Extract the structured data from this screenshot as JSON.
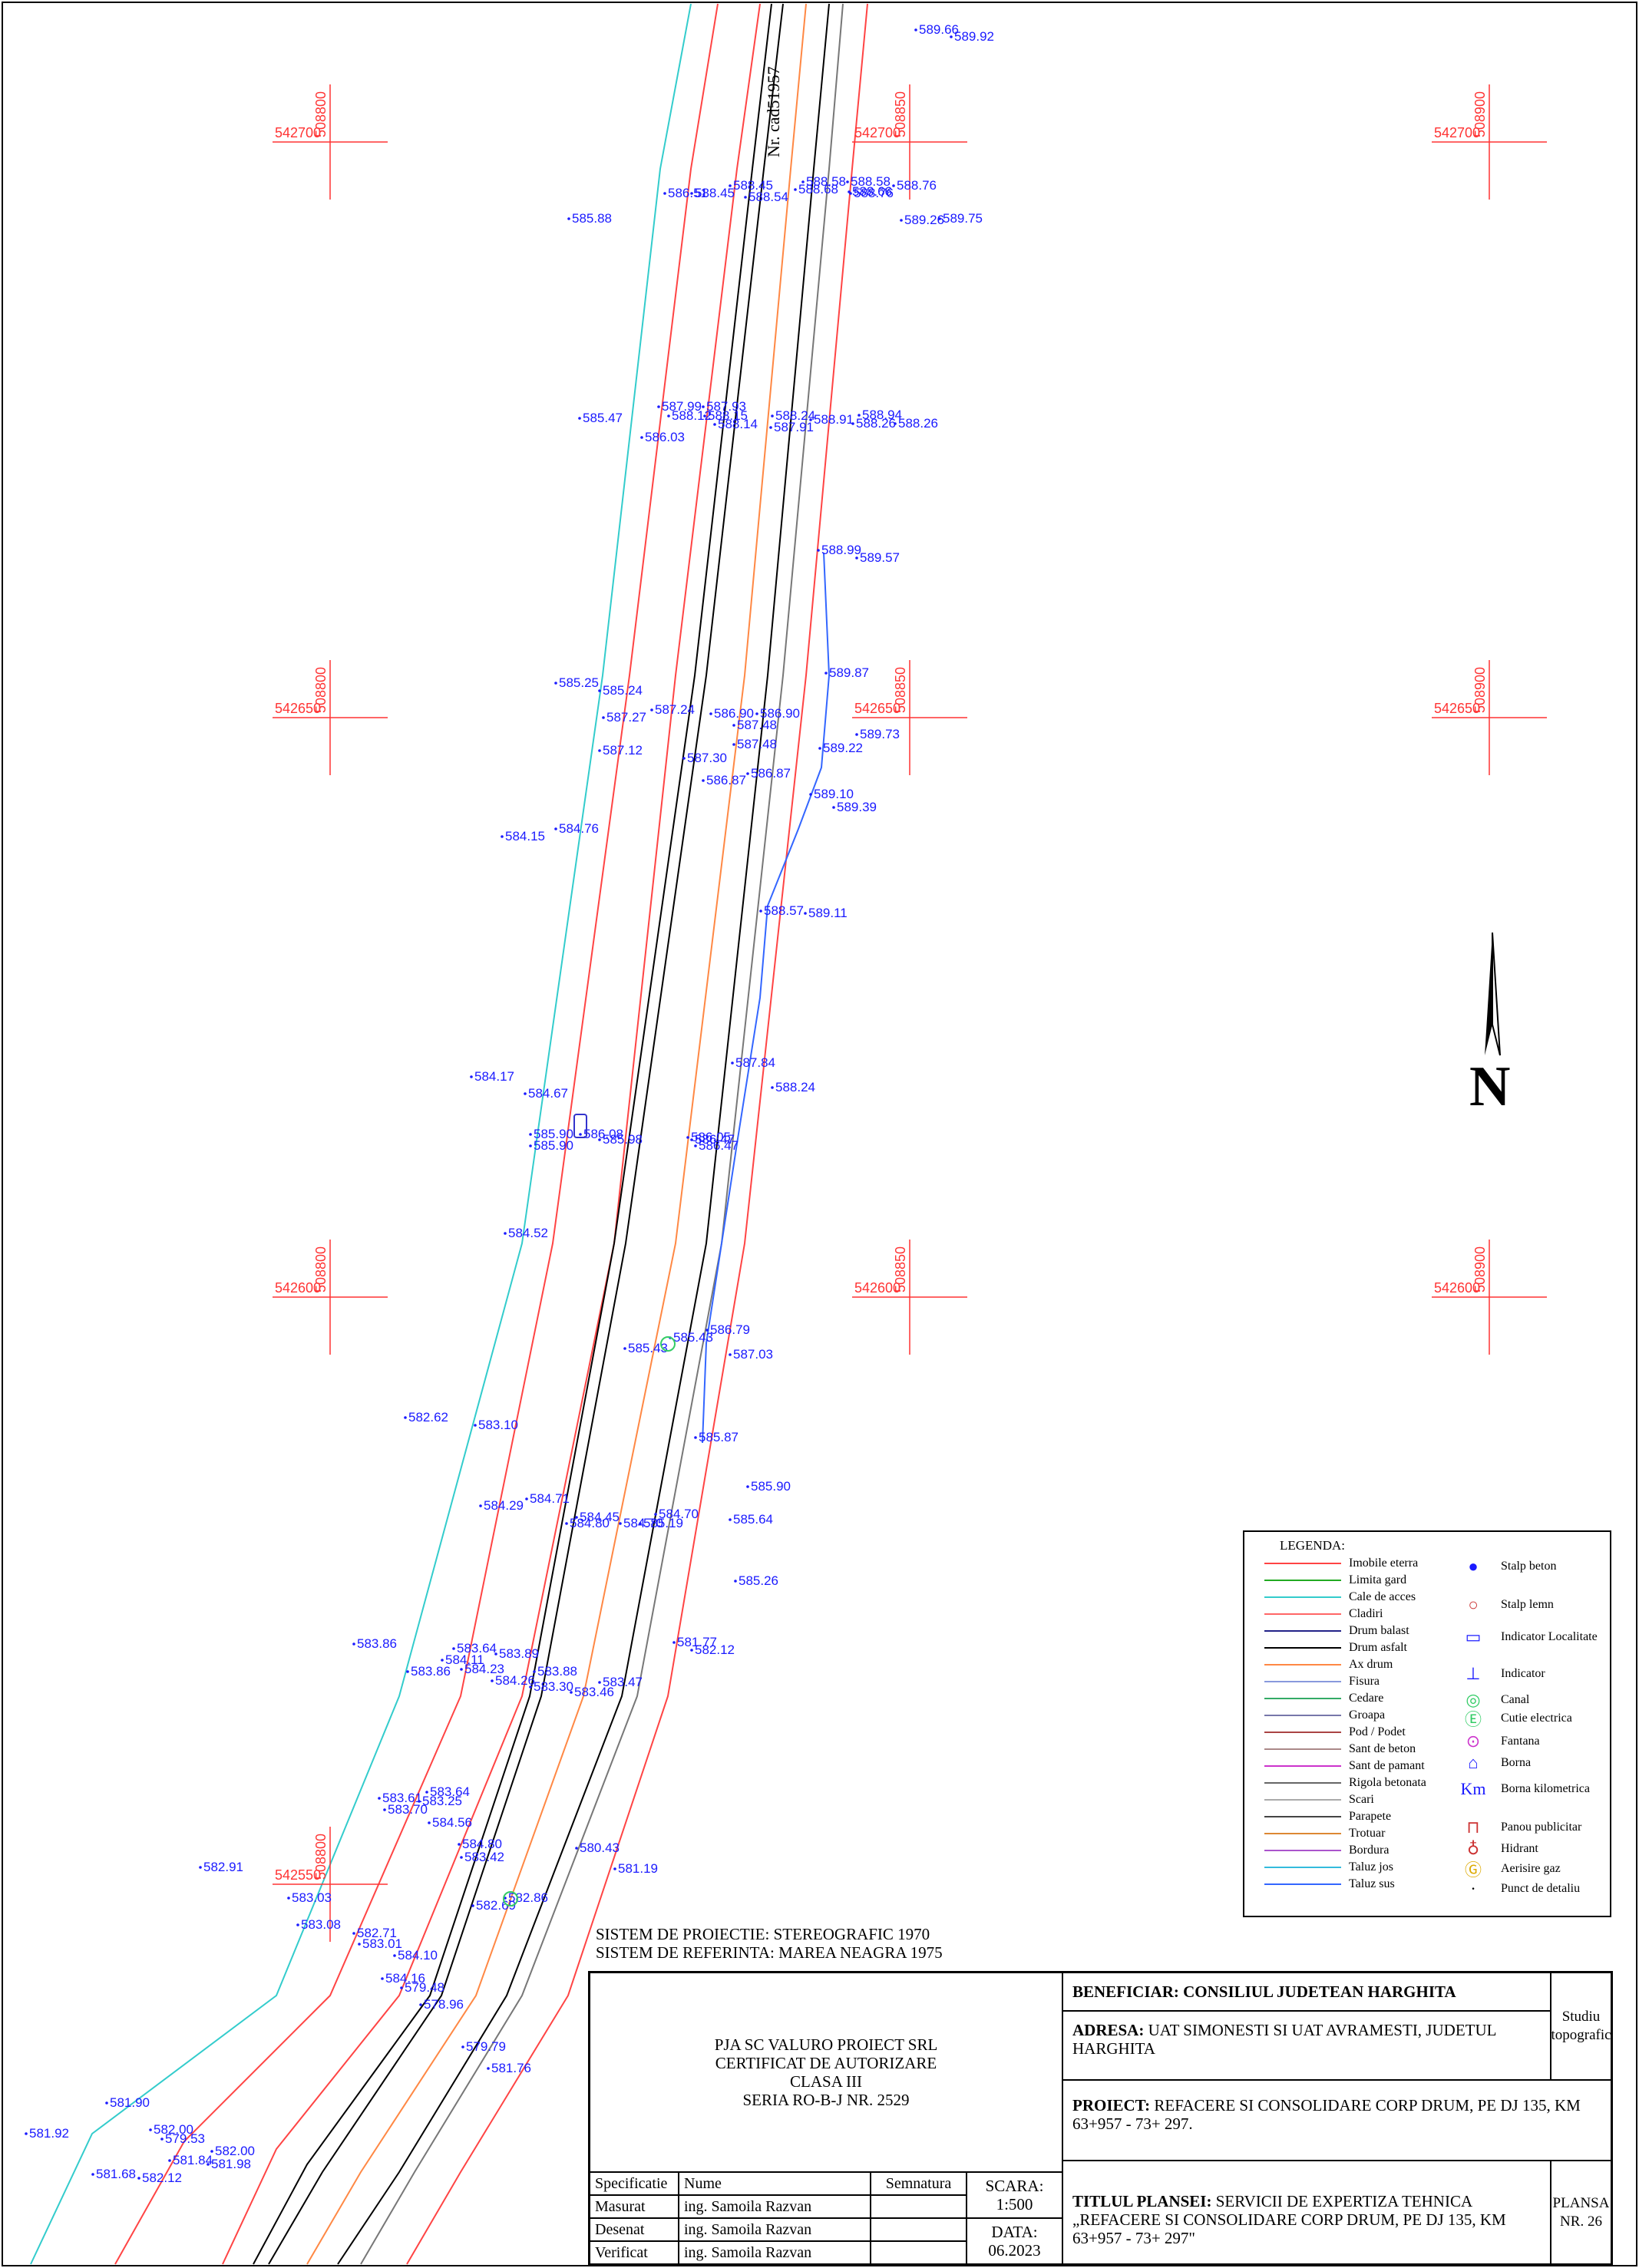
{
  "map": {
    "cadastral_label": "Nr. cad51957",
    "north_label": "N",
    "grid_crosses": [
      {
        "x_label": "542700",
        "y_label": "508800"
      },
      {
        "x_label": "542700",
        "y_label": "508850"
      },
      {
        "x_label": "542700",
        "y_label": "508900"
      },
      {
        "x_label": "542650",
        "y_label": "508800"
      },
      {
        "x_label": "542650",
        "y_label": "508850"
      },
      {
        "x_label": "542650",
        "y_label": "508900"
      },
      {
        "x_label": "542600",
        "y_label": "508800"
      },
      {
        "x_label": "542600",
        "y_label": "508850"
      },
      {
        "x_label": "542600",
        "y_label": "508900"
      },
      {
        "x_label": "542550",
        "y_label": "508800"
      }
    ],
    "points": [
      "589.66",
      "589.92",
      "585.88",
      "586.51",
      "588.45",
      "588.45",
      "588.54",
      "588.58",
      "588.68",
      "588.58",
      "588.66",
      "588.76",
      "588.76",
      "589.26",
      "589.75",
      "585.47",
      "586.03",
      "587.99",
      "588.12",
      "587.93",
      "588.15",
      "588.14",
      "588.24",
      "588.91",
      "587.91",
      "588.26",
      "588.26",
      "588.94",
      "588.99",
      "589.57",
      "589.87",
      "589.22",
      "589.73",
      "589.10",
      "589.39",
      "588.57",
      "589.11",
      "587.84",
      "588.24",
      "585.25",
      "585.24",
      "587.24",
      "587.27",
      "586.90",
      "586.90",
      "587.48",
      "587.48",
      "587.12",
      "587.30",
      "586.87",
      "586.87",
      "584.15",
      "584.76",
      "584.17",
      "584.67",
      "585.90",
      "585.90",
      "586.08",
      "585.98",
      "586.05",
      "586.47",
      "586.47",
      "584.52",
      "586.79",
      "587.03",
      "585.43",
      "585.43",
      "582.62",
      "583.10",
      "585.87",
      "585.90",
      "584.29",
      "584.71",
      "584.45",
      "584.80",
      "584.70",
      "584.70",
      "585.64",
      "585.19",
      "585.26",
      "581.77",
      "582.12",
      "583.86",
      "583.86",
      "583.64",
      "583.89",
      "584.11",
      "584.23",
      "583.88",
      "584.26",
      "583.30",
      "583.47",
      "583.46",
      "583.61",
      "583.64",
      "583.25",
      "583.70",
      "584.56",
      "584.80",
      "583.42",
      "580.43",
      "581.19",
      "582.69",
      "582.86",
      "582.91",
      "583.03",
      "583.08",
      "582.71",
      "583.01",
      "584.10",
      "584.16",
      "579.48",
      "578.96",
      "579.79",
      "581.76",
      "581.90",
      "581.92",
      "582.00",
      "579.53",
      "581.84",
      "582.00",
      "581.98",
      "581.68",
      "582.12"
    ]
  },
  "legend": {
    "title": "LEGENDA:",
    "lines": [
      {
        "label": "Imobile eterra",
        "color": "#ff4444"
      },
      {
        "label": "Limita gard",
        "color": "#22aa22"
      },
      {
        "label": "Cale de acces",
        "color": "#33cccc"
      },
      {
        "label": "Cladiri",
        "color": "#ff6666"
      },
      {
        "label": "Drum balast",
        "color": "#222288"
      },
      {
        "label": "Drum asfalt",
        "color": "#000000"
      },
      {
        "label": "Ax drum",
        "color": "#ff8844"
      },
      {
        "label": "Fisura",
        "color": "#8899dd"
      },
      {
        "label": "Cedare",
        "color": "#33aa66"
      },
      {
        "label": "Groapa",
        "color": "#7777aa"
      },
      {
        "label": "Pod / Podet",
        "color": "#aa4444"
      },
      {
        "label": "Sant de beton",
        "color": "#aa8888"
      },
      {
        "label": "Sant de pamant",
        "color": "#cc33cc"
      },
      {
        "label": "Rigola betonata",
        "color": "#666666"
      },
      {
        "label": "Scari",
        "color": "#aaaaaa"
      },
      {
        "label": "Parapete",
        "color": "#444444"
      },
      {
        "label": "Trotuar",
        "color": "#dd8833"
      },
      {
        "label": "Bordura",
        "color": "#aa55cc"
      },
      {
        "label": "Taluz jos",
        "color": "#33bbdd"
      },
      {
        "label": "Taluz sus",
        "color": "#3366ff"
      }
    ],
    "symbols": [
      {
        "label": "Stalp beton",
        "icon": "concrete-pole-icon"
      },
      {
        "label": "Stalp lemn",
        "icon": "wood-pole-icon"
      },
      {
        "label": "Indicator Localitate",
        "icon": "locality-sign-icon"
      },
      {
        "label": "Indicator",
        "icon": "sign-icon"
      },
      {
        "label": "Canal",
        "icon": "sewer-icon"
      },
      {
        "label": "Cutie electrica",
        "icon": "electric-box-icon"
      },
      {
        "label": "Fantana",
        "icon": "well-icon"
      },
      {
        "label": "Borna",
        "icon": "boundary-marker-icon"
      },
      {
        "label": "Borna kilometrica",
        "icon": "km-marker-icon"
      },
      {
        "label": "Panou publicitar",
        "icon": "billboard-icon"
      },
      {
        "label": "Hidrant",
        "icon": "hydrant-icon"
      },
      {
        "label": "Aerisire gaz",
        "icon": "gas-vent-icon"
      },
      {
        "label": "Punct de detaliu",
        "icon": "detail-point-icon"
      }
    ]
  },
  "projection": {
    "system": "SISTEM DE PROIECTIE: STEREOGRAFIC 1970",
    "reference": "SISTEM DE REFERINTA: MAREA NEAGRA 1975"
  },
  "titleblock": {
    "company": [
      "PJA SC VALURO PROIECT SRL",
      "CERTIFICAT DE AUTORIZARE",
      "CLASA III",
      "SERIA RO-B-J NR. 2529"
    ],
    "beneficiar": "BENEFICIAR: CONSILIUL JUDETEAN HARGHITA",
    "adresa_label": "ADRESA:",
    "adresa": "UAT SIMONESTI SI UAT AVRAMESTI, JUDETUL HARGHITA",
    "proiect_label": "PROIECT:",
    "proiect": "REFACERE SI CONSOLIDARE CORP DRUM, PE DJ 135, KM 63+957 - 73+ 297.",
    "titlu_label": "TITLUL PLANSEI:",
    "titlu": "SERVICII DE EXPERTIZA TEHNICA „REFACERE SI CONSOLIDARE CORP DRUM, PE DJ 135, KM 63+957 - 73+ 297\"",
    "study": "Studiu topografic",
    "plansa": "PLANSA NR. 26",
    "headers": {
      "spec": "Specificatie",
      "name": "Nume",
      "sign": "Semnatura"
    },
    "rows": [
      {
        "role": "Masurat",
        "name": "ing. Samoila Razvan"
      },
      {
        "role": "Desenat",
        "name": "ing. Samoila Razvan"
      },
      {
        "role": "Verificat",
        "name": "ing. Samoila Razvan"
      }
    ],
    "scale_label": "SCARA:",
    "scale": "1:500",
    "date_label": "DATA:",
    "date": "06.2023"
  }
}
